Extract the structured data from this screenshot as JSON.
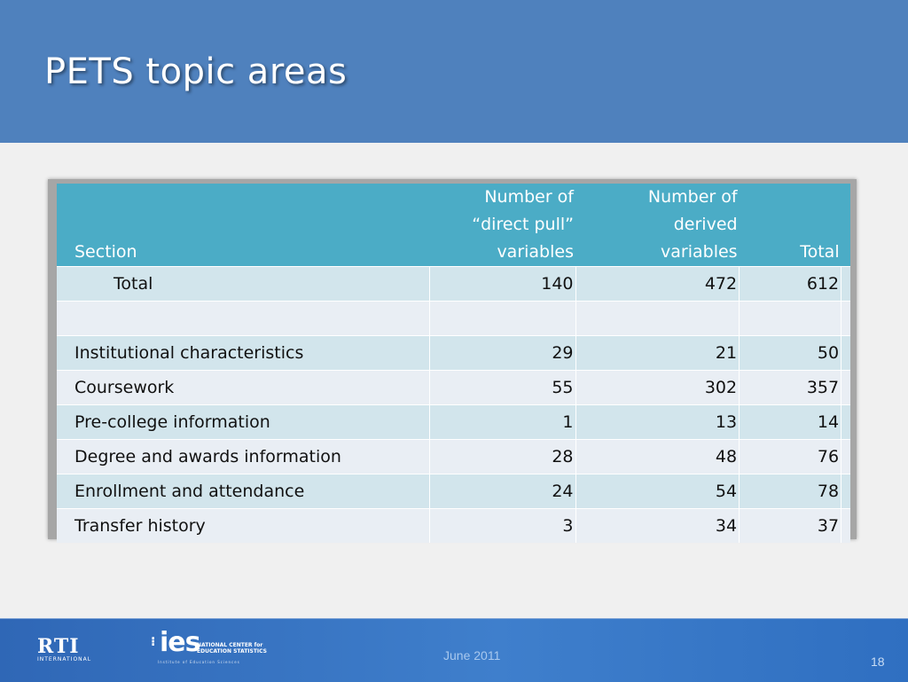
{
  "slide": {
    "title": "PETS topic areas",
    "colors": {
      "header": "#4f81bd",
      "table_header": "#4bacc6",
      "row_odd": "#d2e5ec",
      "row_even": "#e9eef4",
      "footer": "#3f7fcc"
    }
  },
  "table": {
    "headers": {
      "section": "Section",
      "pull_line1": "Number of",
      "pull_line2": "“direct pull”",
      "pull_line3": "variables",
      "derived_line1": "Number of",
      "derived_line2": "derived",
      "derived_line3": "variables",
      "total": "Total"
    },
    "rows": [
      {
        "section": "Total",
        "direct_pull": "140",
        "derived": "472",
        "total": "612"
      },
      {
        "section": "",
        "direct_pull": "",
        "derived": "",
        "total": ""
      },
      {
        "section": "Institutional characteristics",
        "direct_pull": "29",
        "derived": "21",
        "total": "50"
      },
      {
        "section": "Coursework",
        "direct_pull": "55",
        "derived": "302",
        "total": "357"
      },
      {
        "section": "Pre-college information",
        "direct_pull": "1",
        "derived": "13",
        "total": "14"
      },
      {
        "section": "Degree and awards information",
        "direct_pull": "28",
        "derived": "48",
        "total": "76"
      },
      {
        "section": "Enrollment and attendance",
        "direct_pull": "24",
        "derived": "54",
        "total": "78"
      },
      {
        "section": "Transfer history",
        "direct_pull": "3",
        "derived": "34",
        "total": "37"
      }
    ]
  },
  "footer": {
    "rti_logo": {
      "mark": "RTI",
      "sub": "INTERNATIONAL"
    },
    "ies_logo": {
      "word": "ies",
      "nces_line1": "NATIONAL CENTER for",
      "nces_line2": "EDUCATION STATISTICS",
      "tagline": "Institute of Education Sciences"
    },
    "date": "June 2011",
    "page_number": "18"
  }
}
